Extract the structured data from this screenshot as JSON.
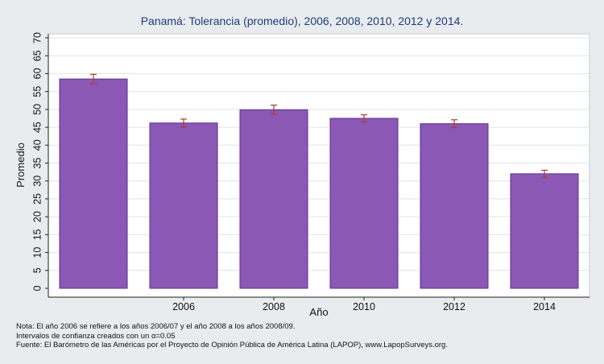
{
  "chart_data": {
    "type": "bar",
    "title": "Panamá: Tolerancia (promedio), 2006, 2008, 2010, 2012 y 2014.",
    "xlabel": "Año",
    "ylabel": "Promedio",
    "categories": [
      "",
      "2006",
      "2008",
      "2010",
      "2012",
      "2014"
    ],
    "values": [
      58.5,
      46.2,
      49.9,
      47.5,
      46.0,
      32.0
    ],
    "ci_low": [
      57.2,
      45.1,
      48.6,
      46.5,
      44.9,
      31.0
    ],
    "ci_high": [
      59.8,
      47.3,
      51.2,
      48.5,
      47.1,
      33.0
    ],
    "ylim": [
      0,
      70
    ],
    "yticks": [
      "0",
      "5",
      "10",
      "15",
      "20",
      "25",
      "30",
      "35",
      "40",
      "45",
      "50",
      "55",
      "60",
      "65",
      "70"
    ],
    "grid": true,
    "colors": {
      "bar": "#8b58b6",
      "bar_edge": "#5e2e8a",
      "error": "#b03a2e",
      "plot_bg": "#ffffff",
      "frame_bg": "#e8ecef",
      "title": "#1f3a78"
    }
  },
  "notes": {
    "line1": "Nota: El año 2006 se refiere a los años 2006/07 y el año 2008 a los años 2008/09.",
    "line2_prefix": "Intervalos de confianza creados con un ",
    "alpha_symbol": "α",
    "line2_suffix": "=0.05",
    "line3": "Fuente: El Barómetro de las Américas por el Proyecto de Opinión Pública de América Latina (LAPOP), www.LapopSurveys.org."
  }
}
